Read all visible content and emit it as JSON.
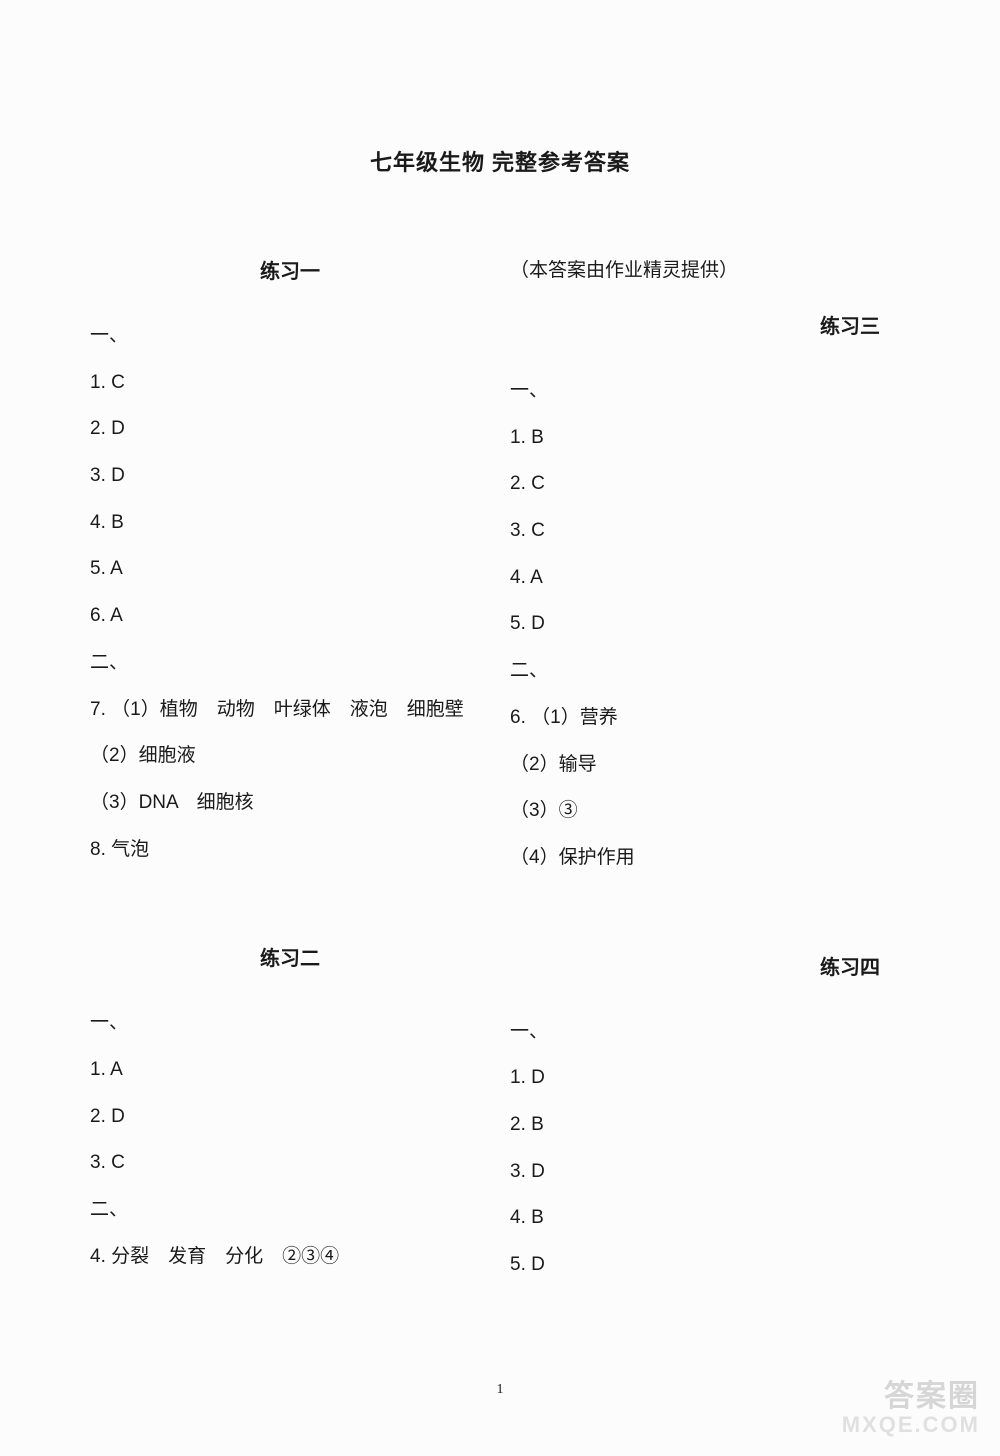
{
  "mainTitle": "七年级生物 完整参考答案",
  "credit": "（本答案由作业精灵提供）",
  "left": {
    "ex1": {
      "title": "练习一",
      "sec1": "一、",
      "q1": "1. C",
      "q2": "2. D",
      "q3": "3. D",
      "q4": "4. B",
      "q5": "5. A",
      "q6": "6. A",
      "sec2": "二、",
      "q7": "7. （1）植物　动物　叶绿体　液泡　细胞壁",
      "q7b": "（2）细胞液",
      "q7c": "（3）DNA　细胞核",
      "q8": "8. 气泡"
    },
    "ex2": {
      "title": "练习二",
      "sec1": "一、",
      "q1": "1. A",
      "q2": "2. D",
      "q3": "3. C",
      "sec2": "二、",
      "q4": "4. 分裂　发育　分化　②③④"
    }
  },
  "right": {
    "ex3": {
      "title": "练习三",
      "sec1": "一、",
      "q1": "1. B",
      "q2": "2. C",
      "q3": "3. C",
      "q4": "4. A",
      "q5": "5. D",
      "sec2": "二、",
      "q6": "6. （1）营养",
      "q6b": "（2）输导",
      "q6c": "（3）③",
      "q6d": "（4）保护作用"
    },
    "ex4": {
      "title": "练习四",
      "sec1": "一、",
      "q1": "1. D",
      "q2": "2. B",
      "q3": "3. D",
      "q4": "4. B",
      "q5": "5. D"
    }
  },
  "pageNum": "1",
  "watermark1": "答案圈",
  "watermark2": "MXQE.COM"
}
